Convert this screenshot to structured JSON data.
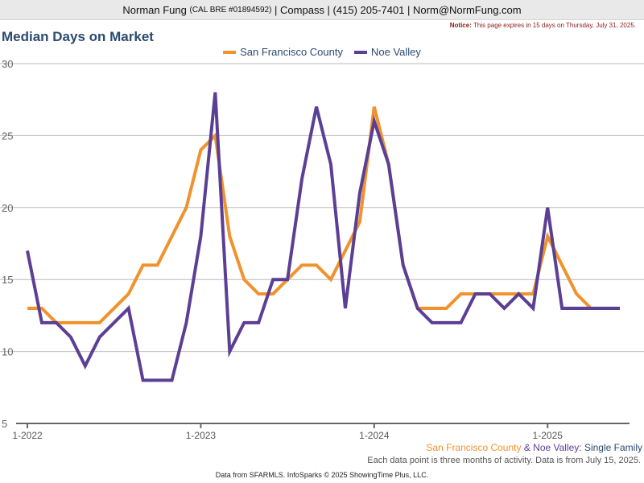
{
  "header": {
    "name": "Norman Fung",
    "license": "(CAL BRE #01894592)",
    "company": "| Compass | (415) 205-7401 | Norm@NormFung.com"
  },
  "notice": {
    "label": "Notice:",
    "text": "This page expires in 15 days on Thursday, July 31, 2025."
  },
  "colors": {
    "sf": "#f0922d",
    "noe": "#5b3f95",
    "title": "#2b4a70",
    "grid": "#bbbbbb"
  },
  "subtitle": {
    "sf": "San Francisco County",
    "amp": " & ",
    "noe": "Noe Valley",
    "rest": ": Single Family"
  },
  "note": "Each data point is three months of activity. Data is from July 15, 2025.",
  "footer": "Data from SFARMLS. InfoSparks © 2025 ShowingTime Plus, LLC.",
  "chart_data": {
    "type": "line",
    "title": "Median Days on Market",
    "ylim": [
      5,
      30
    ],
    "yticks": [
      5,
      10,
      15,
      20,
      25,
      30
    ],
    "xticks": [
      "1-2022",
      "1-2023",
      "1-2024",
      "1-2025"
    ],
    "x": [
      "2022-01",
      "2022-02",
      "2022-03",
      "2022-04",
      "2022-05",
      "2022-06",
      "2022-07",
      "2022-08",
      "2022-09",
      "2022-10",
      "2022-11",
      "2022-12",
      "2023-01",
      "2023-02",
      "2023-03",
      "2023-04",
      "2023-05",
      "2023-06",
      "2023-07",
      "2023-08",
      "2023-09",
      "2023-10",
      "2023-11",
      "2023-12",
      "2024-01",
      "2024-02",
      "2024-03",
      "2024-04",
      "2024-05",
      "2024-06",
      "2024-07",
      "2024-08",
      "2024-09",
      "2024-10",
      "2024-11",
      "2024-12",
      "2025-01",
      "2025-02",
      "2025-03",
      "2025-04",
      "2025-05",
      "2025-06"
    ],
    "grid": true,
    "legend": "top-center",
    "series": [
      {
        "name": "San Francisco County",
        "values": [
          13,
          13,
          12,
          12,
          12,
          12,
          13,
          14,
          16,
          16,
          18,
          20,
          24,
          25,
          18,
          15,
          14,
          14,
          15,
          16,
          16,
          15,
          17,
          19,
          27,
          23,
          16,
          13,
          13,
          13,
          14,
          14,
          14,
          14,
          14,
          14,
          18,
          16,
          14,
          13,
          13,
          13
        ]
      },
      {
        "name": "Noe Valley",
        "values": [
          17,
          12,
          12,
          11,
          9,
          11,
          12,
          13,
          8,
          8,
          8,
          12,
          18,
          28,
          10,
          12,
          12,
          15,
          15,
          22,
          27,
          23,
          13,
          21,
          26,
          23,
          16,
          13,
          12,
          12,
          12,
          14,
          14,
          13,
          14,
          13,
          20,
          13,
          13,
          13,
          13,
          13
        ]
      }
    ]
  }
}
